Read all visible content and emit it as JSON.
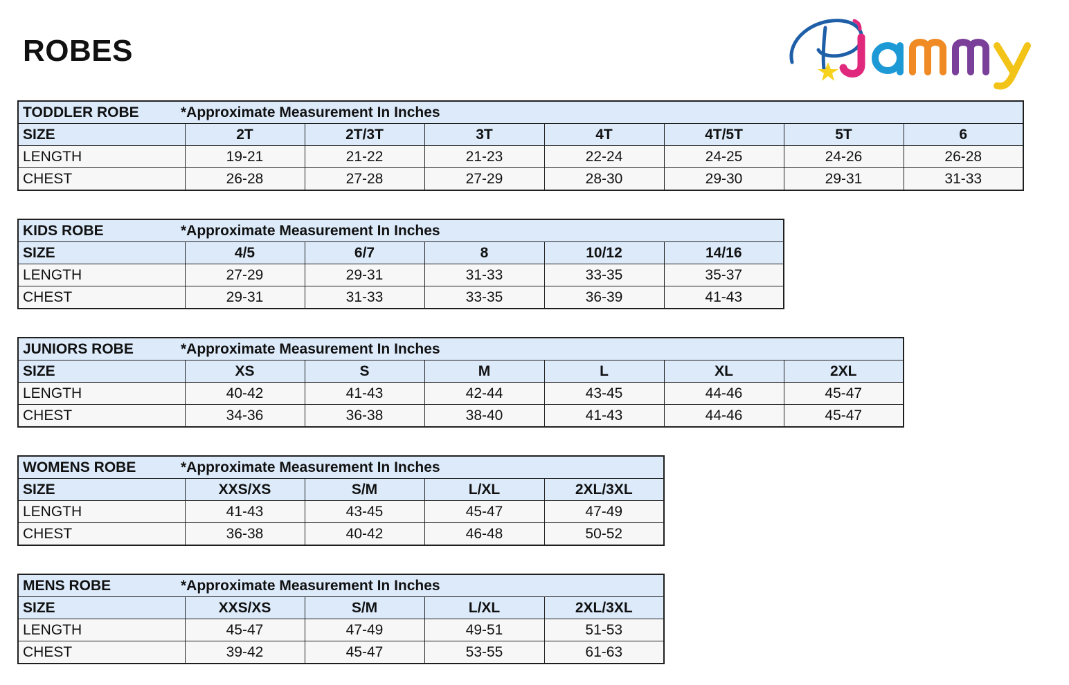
{
  "page": {
    "title": "ROBES"
  },
  "logo": {
    "text": "PJammy",
    "colors": {
      "P": "#1f5fa8",
      "J": "#e0287d",
      "a": "#1d9ad6",
      "m1": "#f08a24",
      "m2": "#7a3f98",
      "y": "#f2c418",
      "star": "#f7d21f"
    }
  },
  "colors": {
    "header_bg": "#dceafa",
    "row_bg": "#f7f7f7",
    "border": "#1f1f1f"
  },
  "tables": [
    {
      "name": "TODDLER ROBE",
      "note": "*Approximate Measurement In Inches",
      "size_label": "SIZE",
      "sizes": [
        "2T",
        "2T/3T",
        "3T",
        "4T",
        "4T/5T",
        "5T",
        "6"
      ],
      "rows": [
        {
          "label": "LENGTH",
          "values": [
            "19-21",
            "21-22",
            "21-23",
            "22-24",
            "24-25",
            "24-26",
            "26-28"
          ]
        },
        {
          "label": "CHEST",
          "values": [
            "26-28",
            "27-28",
            "27-29",
            "28-30",
            "29-30",
            "29-31",
            "31-33"
          ]
        }
      ]
    },
    {
      "name": "KIDS ROBE",
      "note": "*Approximate Measurement In Inches",
      "size_label": "SIZE",
      "sizes": [
        "4/5",
        "6/7",
        "8",
        "10/12",
        "14/16"
      ],
      "rows": [
        {
          "label": "LENGTH",
          "values": [
            "27-29",
            "29-31",
            "31-33",
            "33-35",
            "35-37"
          ]
        },
        {
          "label": "CHEST",
          "values": [
            "29-31",
            "31-33",
            "33-35",
            "36-39",
            "41-43"
          ]
        }
      ]
    },
    {
      "name": "JUNIORS ROBE",
      "note": "*Approximate Measurement In Inches",
      "size_label": "SIZE",
      "sizes": [
        "XS",
        "S",
        "M",
        "L",
        "XL",
        "2XL"
      ],
      "rows": [
        {
          "label": "LENGTH",
          "values": [
            "40-42",
            "41-43",
            "42-44",
            "43-45",
            "44-46",
            "45-47"
          ]
        },
        {
          "label": "CHEST",
          "values": [
            "34-36",
            "36-38",
            "38-40",
            "41-43",
            "44-46",
            "45-47"
          ]
        }
      ]
    },
    {
      "name": "WOMENS ROBE",
      "note": "*Approximate Measurement In Inches",
      "size_label": "SIZE",
      "sizes": [
        "XXS/XS",
        "S/M",
        "L/XL",
        "2XL/3XL"
      ],
      "rows": [
        {
          "label": "LENGTH",
          "values": [
            "41-43",
            "43-45",
            "45-47",
            "47-49"
          ]
        },
        {
          "label": "CHEST",
          "values": [
            "36-38",
            "40-42",
            "46-48",
            "50-52"
          ]
        }
      ]
    },
    {
      "name": "MENS ROBE",
      "note": "*Approximate Measurement In Inches",
      "size_label": "SIZE",
      "sizes": [
        "XXS/XS",
        "S/M",
        "L/XL",
        "2XL/3XL"
      ],
      "rows": [
        {
          "label": "LENGTH",
          "values": [
            "45-47",
            "47-49",
            "49-51",
            "51-53"
          ]
        },
        {
          "label": "CHEST",
          "values": [
            "39-42",
            "45-47",
            "53-55",
            "61-63"
          ]
        }
      ]
    }
  ]
}
